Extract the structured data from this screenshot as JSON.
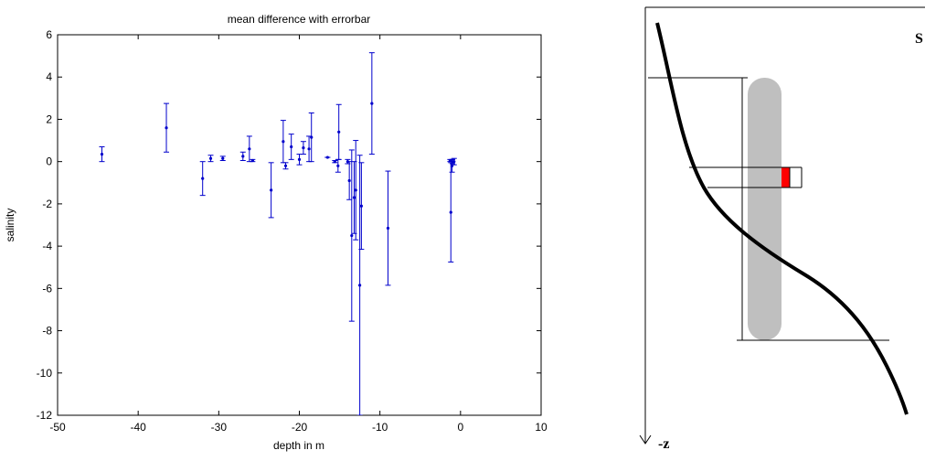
{
  "chart_data": {
    "type": "errorbar",
    "title": "mean difference with errorbar",
    "xlabel": "depth in m",
    "ylabel": "salinity",
    "color": "#0000cc",
    "x": [
      -44.5,
      -36.5,
      -32,
      -31,
      -29.5,
      -27,
      -26.2,
      -25.8,
      -23.5,
      -22,
      -21.7,
      -21,
      -20,
      -19.5,
      -18.8,
      -18.5,
      -16.5,
      -15.6,
      -15.1,
      -15.2,
      -14,
      -13.8,
      -13.5,
      -13.2,
      -13,
      -12.5,
      -12.3,
      -11,
      -9,
      -1.2,
      -1,
      -1.05,
      -0.8,
      -1.3
    ],
    "values": [
      0.35,
      1.6,
      -0.8,
      0.15,
      0.15,
      0.25,
      0.6,
      0.05,
      -1.35,
      0.95,
      -0.2,
      0.7,
      0.1,
      0.65,
      0.6,
      1.15,
      0.2,
      0.0,
      1.4,
      -0.2,
      0.0,
      -0.9,
      -3.5,
      -1.7,
      -1.35,
      -5.85,
      -2.1,
      2.75,
      -3.15,
      -2.4,
      0.0,
      -0.2,
      0.0,
      0.05
    ],
    "errors": [
      0.35,
      1.15,
      0.8,
      0.15,
      0.1,
      0.2,
      0.6,
      0.05,
      1.3,
      1.0,
      0.15,
      0.6,
      0.25,
      0.3,
      0.6,
      1.15,
      0.0,
      0.05,
      1.3,
      0.3,
      0.1,
      0.9,
      4.05,
      1.7,
      2.35,
      6.15,
      2.05,
      2.4,
      2.7,
      2.35,
      0.1,
      0.3,
      0.15,
      0.05
    ],
    "xlim": [
      -50,
      10
    ],
    "xticks": [
      -50,
      -40,
      -30,
      -20,
      -10,
      0,
      10
    ],
    "ylim": [
      -12,
      6
    ],
    "yticks": [
      -12,
      -10,
      -8,
      -6,
      -4,
      -2,
      0,
      2,
      4,
      6
    ]
  },
  "diagram": {
    "axis_label": "-z",
    "curve_label": "S"
  }
}
